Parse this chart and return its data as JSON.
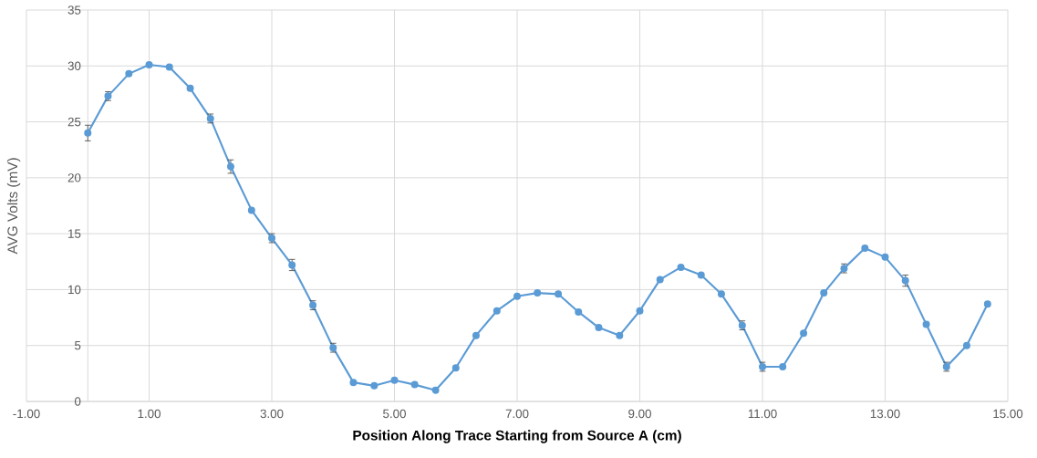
{
  "chart_data": {
    "type": "line",
    "xlabel": "Position Along Trace Starting from Source A (cm)",
    "ylabel": "AVG Volts (mV)",
    "x": [
      0,
      0.33,
      0.67,
      1,
      1.33,
      1.67,
      2,
      2.33,
      2.67,
      3,
      3.33,
      3.67,
      4,
      4.33,
      4.67,
      5,
      5.33,
      5.67,
      6,
      6.33,
      6.67,
      7,
      7.33,
      7.67,
      8,
      8.33,
      8.67,
      9,
      9.33,
      9.67,
      10,
      10.33,
      10.67,
      11,
      11.33,
      11.67,
      12,
      12.33,
      12.67,
      13,
      13.33,
      13.67,
      14,
      14.33,
      14.67
    ],
    "values": [
      24.0,
      27.3,
      29.3,
      30.1,
      29.9,
      28.0,
      25.3,
      21.0,
      17.1,
      14.6,
      12.2,
      8.6,
      4.8,
      1.7,
      1.4,
      1.9,
      1.5,
      1.0,
      3.0,
      5.9,
      8.1,
      9.4,
      9.7,
      9.6,
      8.0,
      6.6,
      5.9,
      8.1,
      10.9,
      12.0,
      11.3,
      9.6,
      6.8,
      3.1,
      3.1,
      6.1,
      9.7,
      11.9,
      13.7,
      12.9,
      10.8,
      6.9,
      3.1,
      5.0,
      8.7
    ],
    "errors": [
      0.7,
      0.4,
      null,
      null,
      null,
      null,
      0.4,
      0.6,
      null,
      0.4,
      0.5,
      0.4,
      0.4,
      null,
      null,
      null,
      null,
      null,
      null,
      null,
      null,
      null,
      null,
      null,
      null,
      null,
      null,
      null,
      null,
      null,
      null,
      null,
      0.4,
      0.4,
      null,
      null,
      null,
      0.4,
      null,
      null,
      0.5,
      null,
      0.4,
      null,
      null
    ],
    "color": "#5b9bd5",
    "xlim": [
      -1,
      15
    ],
    "ylim": [
      0,
      35
    ],
    "xticks": [
      {
        "value": -1,
        "label": "-1.00"
      },
      {
        "value": 1,
        "label": "1.00"
      },
      {
        "value": 3,
        "label": "3.00"
      },
      {
        "value": 5,
        "label": "5.00"
      },
      {
        "value": 7,
        "label": "7.00"
      },
      {
        "value": 9,
        "label": "9.00"
      },
      {
        "value": 11,
        "label": "11.00"
      },
      {
        "value": 13,
        "label": "13.00"
      },
      {
        "value": 15,
        "label": "15.00"
      }
    ],
    "yticks": [
      0,
      5,
      10,
      15,
      20,
      25,
      30,
      35
    ],
    "grid": true,
    "marker": "circle",
    "line_style": "solid"
  }
}
